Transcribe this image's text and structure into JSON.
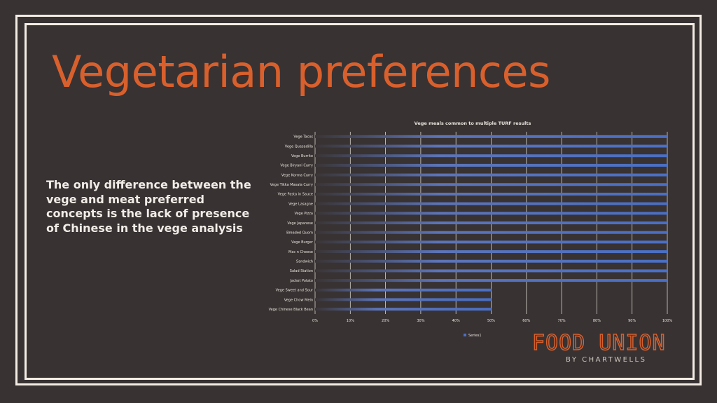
{
  "slide": {
    "title": "Vegetarian preferences",
    "body": "The only difference between the vege and meat preferred concepts is the lack of presence of Chinese in the vege analysis",
    "colors": {
      "background": "#383233",
      "accent": "#d9602c",
      "frame": "#f3ece4",
      "bar": "#4a6fc4"
    }
  },
  "logo": {
    "main": "FOOD UNION",
    "sub": "BY CHARTWELLS"
  },
  "chart_data": {
    "type": "bar",
    "orientation": "horizontal",
    "title": "Vege meals common to multiple TURF results",
    "categories": [
      "Vege Tacos",
      "Vege Quesadilla",
      "Vege Burrito",
      "Vege Biryani Curry",
      "Vege Korma Curry",
      "Vege Tikka Masala Curry",
      "Vege Pasta in Sauce",
      "Vege Lasagne",
      "Vege Pizza",
      "Vege Japanese",
      "Breaded Quorn",
      "Vege Burger",
      "Mac n Cheese",
      "Sandwich",
      "Salad Station",
      "Jacket Potato",
      "Vege Sweet and Sour",
      "Vege Chow Mein",
      "Vege Chinese Black Bean"
    ],
    "series": [
      {
        "name": "Series1",
        "values": [
          1,
          1,
          1,
          1,
          1,
          1,
          1,
          1,
          1,
          1,
          1,
          1,
          1,
          1,
          1,
          1,
          0.5,
          0.5,
          0.5
        ]
      }
    ],
    "xlim": [
      0,
      1
    ],
    "xticks": [
      "0%",
      "10%",
      "20%",
      "30%",
      "40%",
      "50%",
      "60%",
      "70%",
      "80%",
      "90%",
      "100%"
    ],
    "grid": true,
    "legend": "bottom"
  }
}
